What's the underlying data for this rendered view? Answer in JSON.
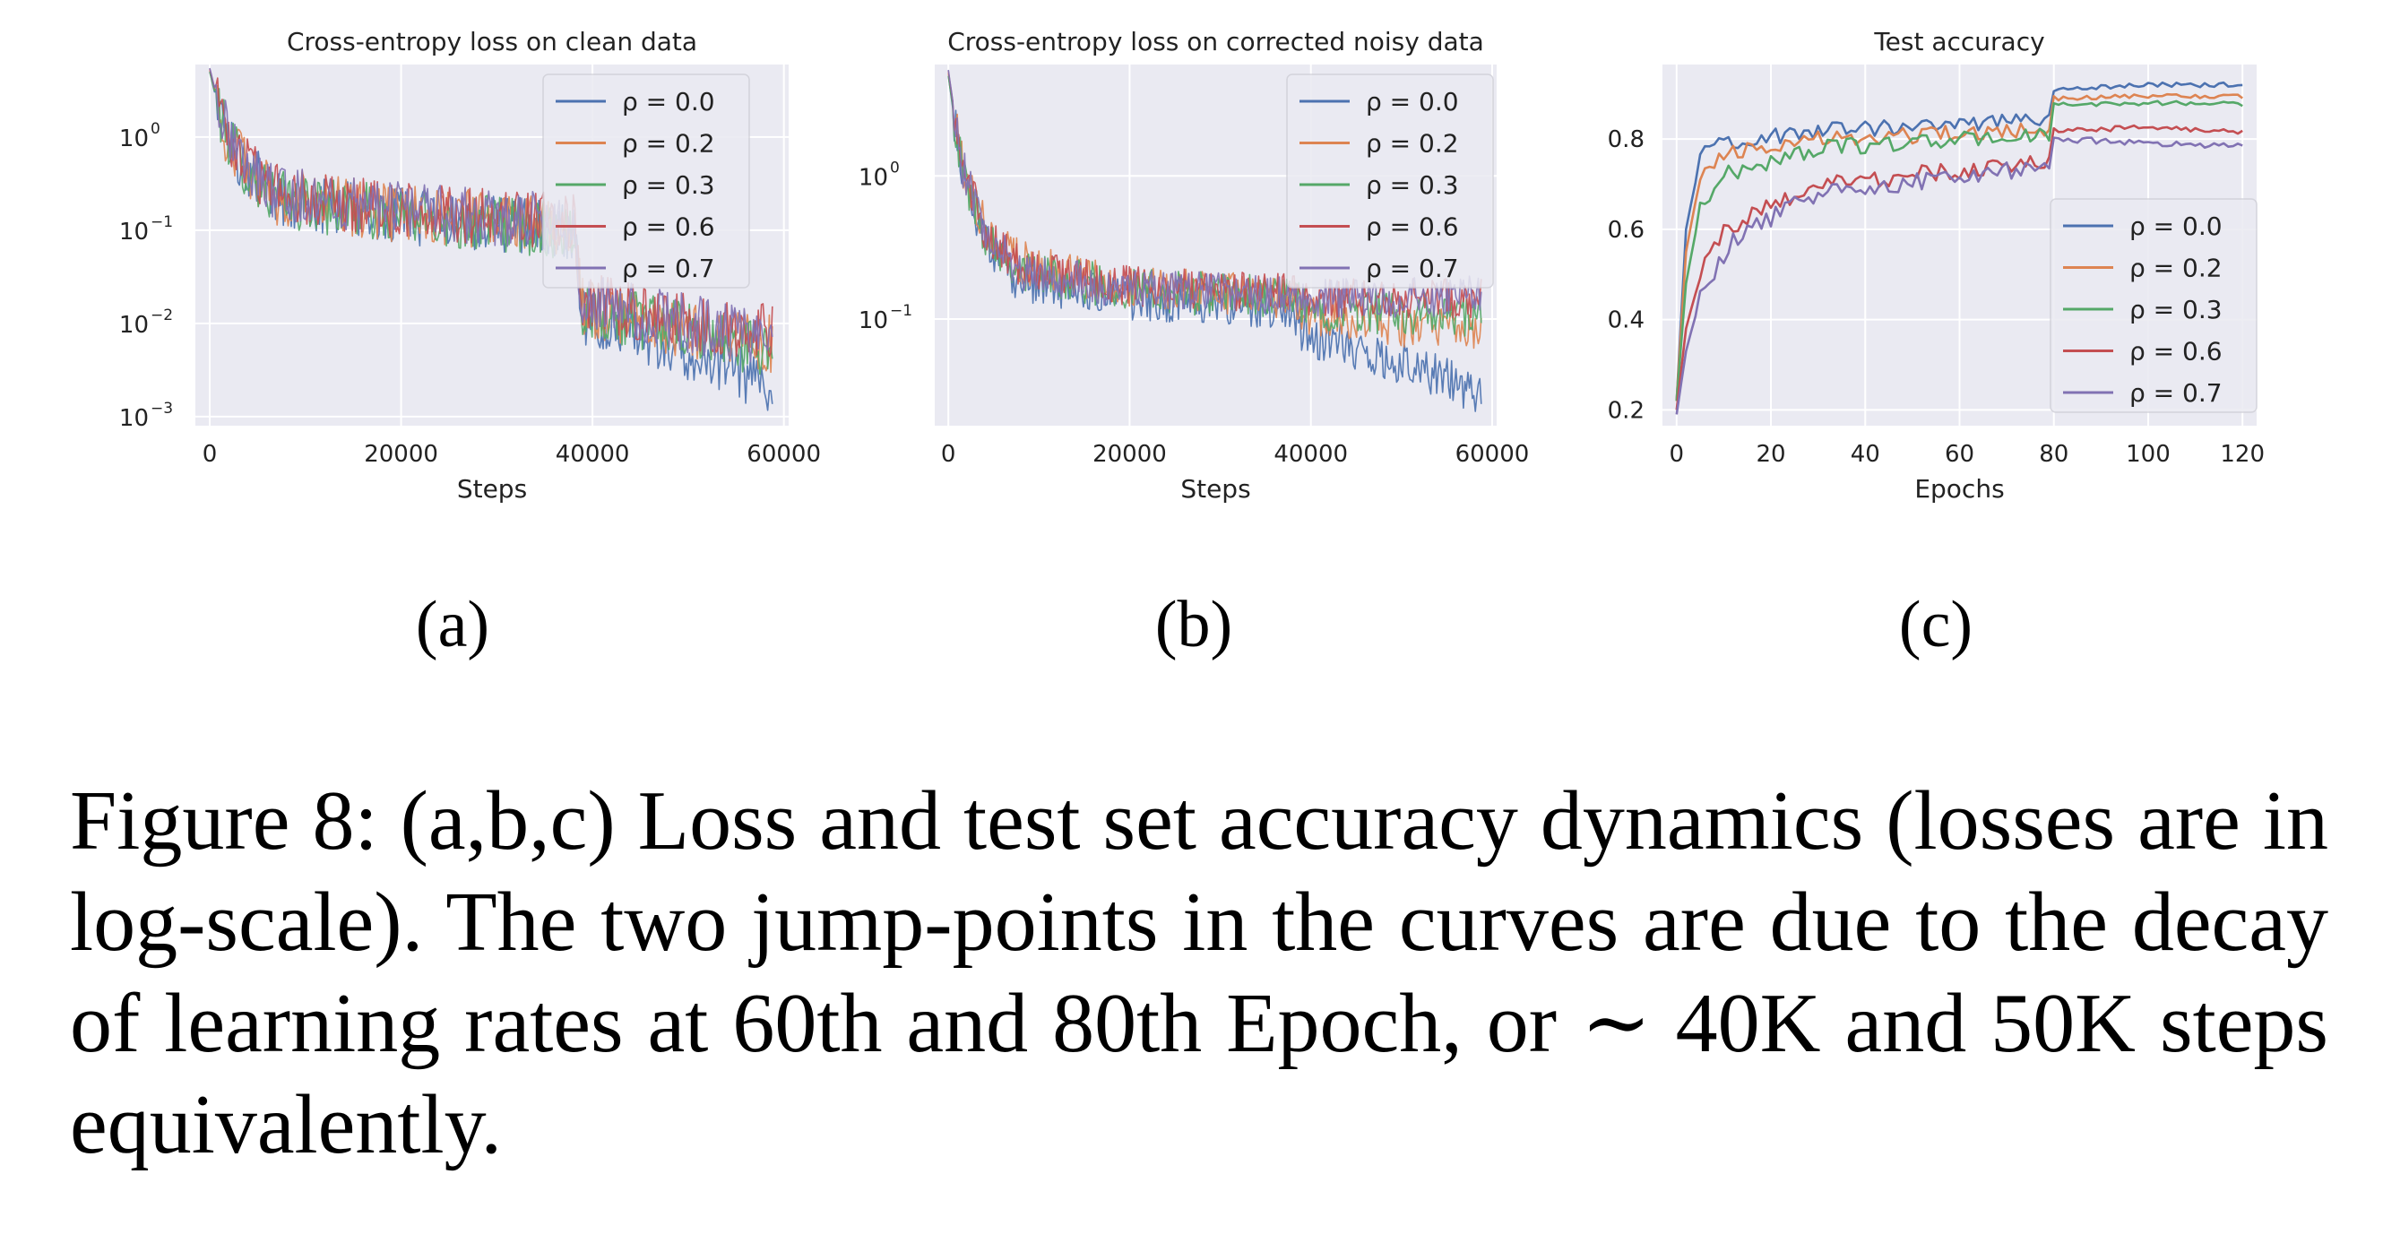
{
  "colors": {
    "plot_bg": "#EAEAF2",
    "grid": "#FFFFFF",
    "series": [
      "#4C72B0",
      "#DD8452",
      "#55A868",
      "#C44E52",
      "#8172B3"
    ]
  },
  "chart_data": [
    {
      "type": "line",
      "title": "Cross-entropy loss on clean data",
      "xlabel": "Steps",
      "ylabel": "",
      "yscale": "log",
      "xlim": [
        -1500,
        60500
      ],
      "ylim": [
        0.0008,
        6.0
      ],
      "xticks": [
        0,
        20000,
        40000,
        60000
      ],
      "xtick_labels": [
        "0",
        "20000",
        "40000",
        "60000"
      ],
      "yticks": [
        0.001,
        0.01,
        0.1,
        1
      ],
      "ytick_bases": [
        "10",
        "10",
        "10",
        "10"
      ],
      "ytick_exps": [
        "−3",
        "−2",
        "−1",
        "0"
      ],
      "grid": true,
      "legend": "top-right",
      "x_max": 58800,
      "series": [
        {
          "name": "ρ = 0.0",
          "knots": [
            [
              0,
              5.0
            ],
            [
              1500,
              1.1
            ],
            [
              4000,
              0.45
            ],
            [
              7000,
              0.22
            ],
            [
              20000,
              0.14
            ],
            [
              38000,
              0.1
            ],
            [
              39000,
              0.012
            ],
            [
              50000,
              0.005
            ],
            [
              58800,
              0.002
            ]
          ],
          "noise": 0.45
        },
        {
          "name": "ρ = 0.2",
          "knots": [
            [
              0,
              5.2
            ],
            [
              1500,
              1.2
            ],
            [
              4000,
              0.45
            ],
            [
              7000,
              0.23
            ],
            [
              20000,
              0.15
            ],
            [
              38000,
              0.11
            ],
            [
              39000,
              0.015
            ],
            [
              50000,
              0.008
            ],
            [
              58800,
              0.006
            ]
          ],
          "noise": 0.45
        },
        {
          "name": "ρ = 0.3",
          "knots": [
            [
              0,
              5.0
            ],
            [
              1500,
              1.2
            ],
            [
              4000,
              0.42
            ],
            [
              7000,
              0.22
            ],
            [
              20000,
              0.14
            ],
            [
              38000,
              0.1
            ],
            [
              39000,
              0.015
            ],
            [
              50000,
              0.008
            ],
            [
              58800,
              0.005
            ]
          ],
          "noise": 0.45
        },
        {
          "name": "ρ = 0.6",
          "knots": [
            [
              0,
              5.4
            ],
            [
              1500,
              1.3
            ],
            [
              4000,
              0.5
            ],
            [
              7000,
              0.25
            ],
            [
              20000,
              0.16
            ],
            [
              38000,
              0.12
            ],
            [
              39000,
              0.018
            ],
            [
              50000,
              0.01
            ],
            [
              58800,
              0.008
            ]
          ],
          "noise": 0.45
        },
        {
          "name": "ρ = 0.7",
          "knots": [
            [
              0,
              5.5
            ],
            [
              1500,
              1.3
            ],
            [
              4000,
              0.5
            ],
            [
              7000,
              0.26
            ],
            [
              20000,
              0.16
            ],
            [
              38000,
              0.12
            ],
            [
              39000,
              0.018
            ],
            [
              50000,
              0.01
            ],
            [
              58800,
              0.007
            ]
          ],
          "noise": 0.45
        }
      ]
    },
    {
      "type": "line",
      "title": "Cross-entropy loss on corrected noisy data",
      "xlabel": "Steps",
      "ylabel": "",
      "yscale": "log",
      "xlim": [
        -1500,
        60500
      ],
      "ylim": [
        0.018,
        6.0
      ],
      "xticks": [
        0,
        20000,
        40000,
        60000
      ],
      "xtick_labels": [
        "0",
        "20000",
        "40000",
        "60000"
      ],
      "yticks": [
        0.1,
        1
      ],
      "ytick_bases": [
        "10",
        "10"
      ],
      "ytick_exps": [
        "−1",
        "0"
      ],
      "grid": true,
      "legend": "top-right",
      "x_max": 58800,
      "series": [
        {
          "name": "ρ = 0.0",
          "knots": [
            [
              0,
              5.0
            ],
            [
              1500,
              1.0
            ],
            [
              4000,
              0.35
            ],
            [
              8000,
              0.18
            ],
            [
              20000,
              0.14
            ],
            [
              38000,
              0.12
            ],
            [
              39000,
              0.08
            ],
            [
              50000,
              0.05
            ],
            [
              58800,
              0.03
            ]
          ],
          "noise": 0.22
        },
        {
          "name": "ρ = 0.2",
          "knots": [
            [
              0,
              5.2
            ],
            [
              1500,
              1.2
            ],
            [
              4000,
              0.45
            ],
            [
              8000,
              0.25
            ],
            [
              20000,
              0.17
            ],
            [
              38000,
              0.14
            ],
            [
              39000,
              0.11
            ],
            [
              50000,
              0.09
            ],
            [
              58800,
              0.08
            ]
          ],
          "noise": 0.22
        },
        {
          "name": "ρ = 0.3",
          "knots": [
            [
              0,
              5.0
            ],
            [
              1500,
              1.1
            ],
            [
              4000,
              0.4
            ],
            [
              8000,
              0.22
            ],
            [
              20000,
              0.16
            ],
            [
              38000,
              0.14
            ],
            [
              39000,
              0.12
            ],
            [
              50000,
              0.11
            ],
            [
              58800,
              0.1
            ]
          ],
          "noise": 0.22
        },
        {
          "name": "ρ = 0.6",
          "knots": [
            [
              0,
              5.4
            ],
            [
              1500,
              1.2
            ],
            [
              4000,
              0.42
            ],
            [
              8000,
              0.23
            ],
            [
              20000,
              0.17
            ],
            [
              38000,
              0.15
            ],
            [
              39000,
              0.14
            ],
            [
              50000,
              0.14
            ],
            [
              58800,
              0.14
            ]
          ],
          "noise": 0.2
        },
        {
          "name": "ρ = 0.7",
          "knots": [
            [
              0,
              5.5
            ],
            [
              1500,
              1.2
            ],
            [
              4000,
              0.4
            ],
            [
              8000,
              0.22
            ],
            [
              20000,
              0.16
            ],
            [
              38000,
              0.15
            ],
            [
              39000,
              0.14
            ],
            [
              50000,
              0.14
            ],
            [
              58800,
              0.15
            ]
          ],
          "noise": 0.2
        }
      ]
    },
    {
      "type": "line",
      "title": "Test accuracy",
      "xlabel": "Epochs",
      "ylabel": "",
      "yscale": "linear",
      "xlim": [
        -3,
        123
      ],
      "ylim": [
        0.165,
        0.965
      ],
      "xticks": [
        0,
        20,
        40,
        60,
        80,
        100,
        120
      ],
      "xtick_labels": [
        "0",
        "20",
        "40",
        "60",
        "80",
        "100",
        "120"
      ],
      "yticks": [
        0.2,
        0.4,
        0.6,
        0.8
      ],
      "ytick_labels": [
        "0.2",
        "0.4",
        "0.6",
        "0.8"
      ],
      "grid": true,
      "legend": "center-right",
      "x_max": 120,
      "series": [
        {
          "name": "ρ = 0.0",
          "knots": [
            [
              0,
              0.22
            ],
            [
              2,
              0.6
            ],
            [
              5,
              0.76
            ],
            [
              10,
              0.79
            ],
            [
              30,
              0.82
            ],
            [
              79,
              0.84
            ],
            [
              80,
              0.91
            ],
            [
              100,
              0.92
            ],
            [
              120,
              0.92
            ]
          ],
          "noise": 0.018,
          "late_noise": 0.005
        },
        {
          "name": "ρ = 0.2",
          "knots": [
            [
              0,
              0.22
            ],
            [
              2,
              0.55
            ],
            [
              5,
              0.72
            ],
            [
              10,
              0.77
            ],
            [
              30,
              0.8
            ],
            [
              79,
              0.82
            ],
            [
              80,
              0.89
            ],
            [
              100,
              0.895
            ],
            [
              120,
              0.893
            ]
          ],
          "noise": 0.018,
          "late_noise": 0.005
        },
        {
          "name": "ρ = 0.3",
          "knots": [
            [
              0,
              0.22
            ],
            [
              2,
              0.48
            ],
            [
              5,
              0.65
            ],
            [
              10,
              0.72
            ],
            [
              30,
              0.78
            ],
            [
              79,
              0.81
            ],
            [
              80,
              0.875
            ],
            [
              100,
              0.88
            ],
            [
              120,
              0.878
            ]
          ],
          "noise": 0.018,
          "late_noise": 0.005
        },
        {
          "name": "ρ = 0.6",
          "knots": [
            [
              0,
              0.2
            ],
            [
              2,
              0.38
            ],
            [
              5,
              0.5
            ],
            [
              10,
              0.6
            ],
            [
              30,
              0.7
            ],
            [
              79,
              0.75
            ],
            [
              80,
              0.82
            ],
            [
              100,
              0.825
            ],
            [
              120,
              0.815
            ]
          ],
          "noise": 0.02,
          "late_noise": 0.006
        },
        {
          "name": "ρ = 0.7",
          "knots": [
            [
              0,
              0.19
            ],
            [
              2,
              0.33
            ],
            [
              5,
              0.45
            ],
            [
              12,
              0.58
            ],
            [
              30,
              0.68
            ],
            [
              79,
              0.74
            ],
            [
              80,
              0.8
            ],
            [
              100,
              0.79
            ],
            [
              120,
              0.785
            ]
          ],
          "noise": 0.02,
          "late_noise": 0.007
        }
      ]
    }
  ],
  "sublabels": [
    "(a)",
    "(b)",
    "(c)"
  ],
  "caption": "Figure 8: (a,b,c) Loss and test set accuracy dynamics (losses are in log-scale). The two jump-points in the curves are due to the decay of learning rates at 60th and 80th Epoch, or ∼ 40K and 50K steps equivalently."
}
